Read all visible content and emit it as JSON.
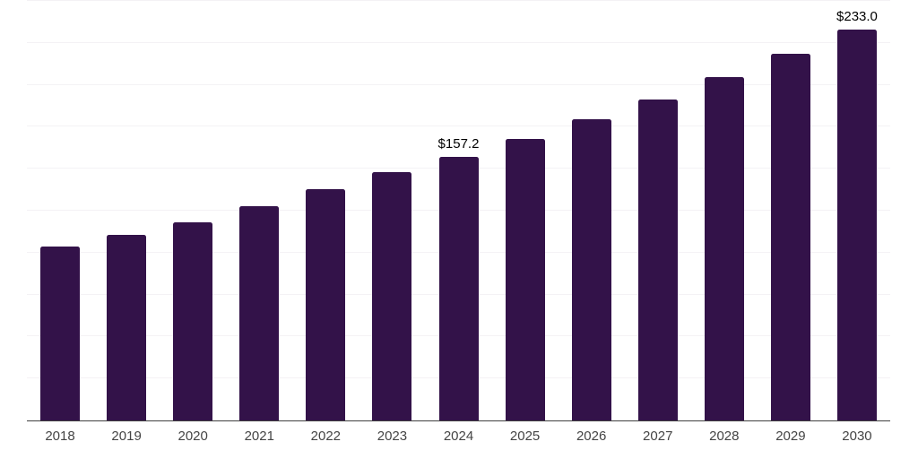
{
  "chart_data": {
    "type": "bar",
    "title": "",
    "xlabel": "",
    "ylabel": "",
    "categories": [
      "2018",
      "2019",
      "2020",
      "2021",
      "2022",
      "2023",
      "2024",
      "2025",
      "2026",
      "2027",
      "2028",
      "2029",
      "2030"
    ],
    "values": [
      103.4,
      110.5,
      118.2,
      127.8,
      138.0,
      148.1,
      157.2,
      168.0,
      179.4,
      191.4,
      204.5,
      218.4,
      233.0
    ],
    "data_labels": [
      "",
      "",
      "",
      "",
      "",
      "",
      "$157.2",
      "",
      "",
      "",
      "",
      "",
      "$233.0"
    ],
    "ylim": [
      0,
      250
    ],
    "grid_step": 25,
    "grid": true,
    "legend_position": "none",
    "colors": {
      "bar": "#331249",
      "gridline": "#f4f2f5",
      "axis": "#3f3f3f",
      "tick_label": "#444444",
      "data_label": "#000000",
      "background": "#ffffff"
    }
  }
}
